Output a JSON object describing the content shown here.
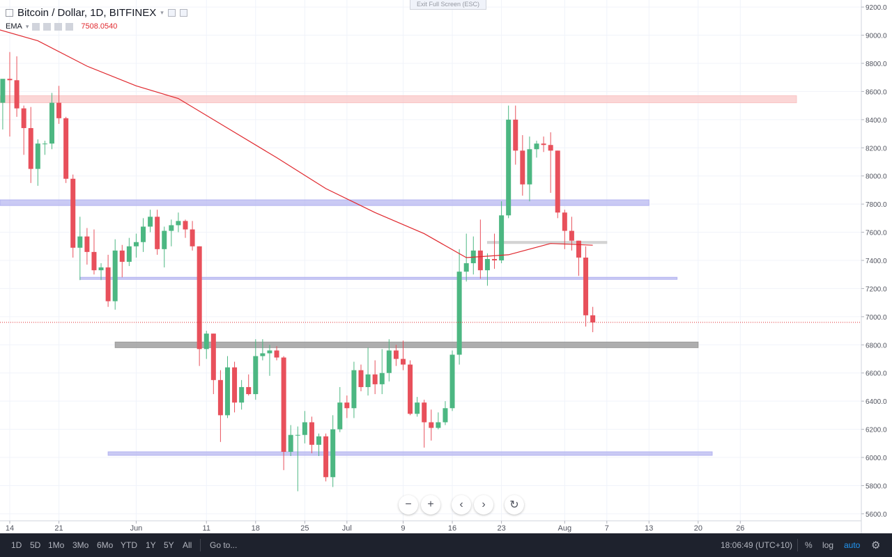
{
  "header": {
    "symbol": "Bitcoin / Dollar, 1D, BITFINEX",
    "indicator_name": "EMA",
    "indicator_value": "7508.0540"
  },
  "exit_fullscreen_label": "Exit Full Screen (ESC)",
  "toolbar": {
    "ranges": [
      "1D",
      "5D",
      "1Mo",
      "3Mo",
      "6Mo",
      "YTD",
      "1Y",
      "5Y",
      "All"
    ],
    "goto_label": "Go to...",
    "clock": "18:06:49 (UTC+10)",
    "percent_label": "%",
    "log_label": "log",
    "auto_label": "auto"
  },
  "colors": {
    "up": "#4cb782",
    "down": "#e8505b",
    "ema": "#e0282e",
    "support_band": "#b3b3f0",
    "resistance_band": "#f9c4c4",
    "gray_band": "#9a9a9a"
  },
  "chart_data": {
    "type": "candlestick",
    "ylim": [
      5550,
      9250
    ],
    "y_ticks": [
      5600,
      5800,
      6000,
      6200,
      6400,
      6600,
      6800,
      7000,
      7200,
      7400,
      7600,
      7800,
      8000,
      8200,
      8400,
      8600,
      8800,
      9000,
      9200
    ],
    "x_tick_labels": [
      "14",
      "21",
      "Jun",
      "11",
      "18",
      "25",
      "Jul",
      "9",
      "16",
      "23",
      "Aug",
      "7",
      "13",
      "20",
      "26"
    ],
    "x_tick_dates": [
      "2018-05-14",
      "2018-05-21",
      "2018-06-01",
      "2018-06-11",
      "2018-06-18",
      "2018-06-25",
      "2018-07-01",
      "2018-07-09",
      "2018-07-16",
      "2018-07-23",
      "2018-08-01",
      "2018-08-07",
      "2018-08-13",
      "2018-08-20",
      "2018-08-26"
    ],
    "current_price": 6960,
    "candles": [
      {
        "d": "2018-05-13",
        "o": 8520,
        "h": 8670,
        "l": 8330,
        "c": 8690
      },
      {
        "d": "2018-05-14",
        "o": 8690,
        "h": 8880,
        "l": 8280,
        "c": 8680
      },
      {
        "d": "2018-05-15",
        "o": 8680,
        "h": 8850,
        "l": 8420,
        "c": 8480
      },
      {
        "d": "2018-05-16",
        "o": 8480,
        "h": 8500,
        "l": 8150,
        "c": 8340
      },
      {
        "d": "2018-05-17",
        "o": 8340,
        "h": 8490,
        "l": 7950,
        "c": 8050
      },
      {
        "d": "2018-05-18",
        "o": 8050,
        "h": 8260,
        "l": 7930,
        "c": 8230
      },
      {
        "d": "2018-05-19",
        "o": 8230,
        "h": 8250,
        "l": 8150,
        "c": 8230
      },
      {
        "d": "2018-05-20",
        "o": 8230,
        "h": 8590,
        "l": 8190,
        "c": 8520
      },
      {
        "d": "2018-05-21",
        "o": 8520,
        "h": 8640,
        "l": 8370,
        "c": 8410
      },
      {
        "d": "2018-05-22",
        "o": 8410,
        "h": 8420,
        "l": 7950,
        "c": 7980
      },
      {
        "d": "2018-05-23",
        "o": 7980,
        "h": 8010,
        "l": 7420,
        "c": 7490
      },
      {
        "d": "2018-05-24",
        "o": 7490,
        "h": 7710,
        "l": 7260,
        "c": 7570
      },
      {
        "d": "2018-05-25",
        "o": 7570,
        "h": 7630,
        "l": 7370,
        "c": 7460
      },
      {
        "d": "2018-05-26",
        "o": 7460,
        "h": 7620,
        "l": 7300,
        "c": 7330
      },
      {
        "d": "2018-05-27",
        "o": 7330,
        "h": 7380,
        "l": 7260,
        "c": 7350
      },
      {
        "d": "2018-05-28",
        "o": 7350,
        "h": 7440,
        "l": 7070,
        "c": 7110
      },
      {
        "d": "2018-05-29",
        "o": 7110,
        "h": 7550,
        "l": 7050,
        "c": 7470
      },
      {
        "d": "2018-05-30",
        "o": 7470,
        "h": 7510,
        "l": 7280,
        "c": 7390
      },
      {
        "d": "2018-05-31",
        "o": 7390,
        "h": 7560,
        "l": 7360,
        "c": 7500
      },
      {
        "d": "2018-06-01",
        "o": 7500,
        "h": 7590,
        "l": 7420,
        "c": 7530
      },
      {
        "d": "2018-06-02",
        "o": 7530,
        "h": 7700,
        "l": 7460,
        "c": 7640
      },
      {
        "d": "2018-06-03",
        "o": 7640,
        "h": 7760,
        "l": 7600,
        "c": 7710
      },
      {
        "d": "2018-06-04",
        "o": 7710,
        "h": 7760,
        "l": 7440,
        "c": 7480
      },
      {
        "d": "2018-06-05",
        "o": 7480,
        "h": 7640,
        "l": 7350,
        "c": 7610
      },
      {
        "d": "2018-06-06",
        "o": 7610,
        "h": 7690,
        "l": 7500,
        "c": 7650
      },
      {
        "d": "2018-06-07",
        "o": 7650,
        "h": 7740,
        "l": 7600,
        "c": 7680
      },
      {
        "d": "2018-06-08",
        "o": 7680,
        "h": 7690,
        "l": 7560,
        "c": 7620
      },
      {
        "d": "2018-06-09",
        "o": 7620,
        "h": 7680,
        "l": 7470,
        "c": 7500
      },
      {
        "d": "2018-06-10",
        "o": 7500,
        "h": 7500,
        "l": 6650,
        "c": 6770
      },
      {
        "d": "2018-06-11",
        "o": 6770,
        "h": 6900,
        "l": 6700,
        "c": 6880
      },
      {
        "d": "2018-06-12",
        "o": 6880,
        "h": 6880,
        "l": 6450,
        "c": 6550
      },
      {
        "d": "2018-06-13",
        "o": 6550,
        "h": 6620,
        "l": 6110,
        "c": 6300
      },
      {
        "d": "2018-06-14",
        "o": 6300,
        "h": 6720,
        "l": 6280,
        "c": 6640
      },
      {
        "d": "2018-06-15",
        "o": 6640,
        "h": 6680,
        "l": 6320,
        "c": 6390
      },
      {
        "d": "2018-06-16",
        "o": 6390,
        "h": 6550,
        "l": 6340,
        "c": 6500
      },
      {
        "d": "2018-06-17",
        "o": 6500,
        "h": 6590,
        "l": 6440,
        "c": 6450
      },
      {
        "d": "2018-06-18",
        "o": 6450,
        "h": 6840,
        "l": 6410,
        "c": 6720
      },
      {
        "d": "2018-06-19",
        "o": 6720,
        "h": 6840,
        "l": 6690,
        "c": 6740
      },
      {
        "d": "2018-06-20",
        "o": 6740,
        "h": 6800,
        "l": 6580,
        "c": 6760
      },
      {
        "d": "2018-06-21",
        "o": 6760,
        "h": 6790,
        "l": 6690,
        "c": 6710
      },
      {
        "d": "2018-06-22",
        "o": 6710,
        "h": 6720,
        "l": 5910,
        "c": 6040
      },
      {
        "d": "2018-06-23",
        "o": 6040,
        "h": 6230,
        "l": 6010,
        "c": 6160
      },
      {
        "d": "2018-06-24",
        "o": 6160,
        "h": 6220,
        "l": 5760,
        "c": 6160
      },
      {
        "d": "2018-06-25",
        "o": 6160,
        "h": 6330,
        "l": 6100,
        "c": 6250
      },
      {
        "d": "2018-06-26",
        "o": 6250,
        "h": 6290,
        "l": 6030,
        "c": 6090
      },
      {
        "d": "2018-06-27",
        "o": 6090,
        "h": 6170,
        "l": 6010,
        "c": 6150
      },
      {
        "d": "2018-06-28",
        "o": 6150,
        "h": 6170,
        "l": 5830,
        "c": 5860
      },
      {
        "d": "2018-06-29",
        "o": 5860,
        "h": 6300,
        "l": 5790,
        "c": 6200
      },
      {
        "d": "2018-06-30",
        "o": 6200,
        "h": 6500,
        "l": 6180,
        "c": 6390
      },
      {
        "d": "2018-07-01",
        "o": 6390,
        "h": 6440,
        "l": 6280,
        "c": 6350
      },
      {
        "d": "2018-07-02",
        "o": 6350,
        "h": 6680,
        "l": 6280,
        "c": 6620
      },
      {
        "d": "2018-07-03",
        "o": 6620,
        "h": 6660,
        "l": 6470,
        "c": 6500
      },
      {
        "d": "2018-07-04",
        "o": 6500,
        "h": 6780,
        "l": 6440,
        "c": 6590
      },
      {
        "d": "2018-07-05",
        "o": 6590,
        "h": 6690,
        "l": 6450,
        "c": 6520
      },
      {
        "d": "2018-07-06",
        "o": 6520,
        "h": 6770,
        "l": 6450,
        "c": 6600
      },
      {
        "d": "2018-07-07",
        "o": 6600,
        "h": 6840,
        "l": 6540,
        "c": 6760
      },
      {
        "d": "2018-07-08",
        "o": 6760,
        "h": 6800,
        "l": 6650,
        "c": 6700
      },
      {
        "d": "2018-07-09",
        "o": 6700,
        "h": 6830,
        "l": 6620,
        "c": 6660
      },
      {
        "d": "2018-07-10",
        "o": 6660,
        "h": 6690,
        "l": 6300,
        "c": 6310
      },
      {
        "d": "2018-07-11",
        "o": 6310,
        "h": 6430,
        "l": 6290,
        "c": 6390
      },
      {
        "d": "2018-07-12",
        "o": 6390,
        "h": 6410,
        "l": 6070,
        "c": 6250
      },
      {
        "d": "2018-07-13",
        "o": 6250,
        "h": 6340,
        "l": 6120,
        "c": 6210
      },
      {
        "d": "2018-07-14",
        "o": 6210,
        "h": 6320,
        "l": 6200,
        "c": 6250
      },
      {
        "d": "2018-07-15",
        "o": 6250,
        "h": 6400,
        "l": 6230,
        "c": 6350
      },
      {
        "d": "2018-07-16",
        "o": 6350,
        "h": 6760,
        "l": 6330,
        "c": 6730
      },
      {
        "d": "2018-07-17",
        "o": 6730,
        "h": 7480,
        "l": 6660,
        "c": 7320
      },
      {
        "d": "2018-07-18",
        "o": 7320,
        "h": 7590,
        "l": 7250,
        "c": 7380
      },
      {
        "d": "2018-07-19",
        "o": 7380,
        "h": 7570,
        "l": 7300,
        "c": 7470
      },
      {
        "d": "2018-07-20",
        "o": 7470,
        "h": 7690,
        "l": 7270,
        "c": 7330
      },
      {
        "d": "2018-07-21",
        "o": 7330,
        "h": 7450,
        "l": 7220,
        "c": 7410
      },
      {
        "d": "2018-07-22",
        "o": 7410,
        "h": 7590,
        "l": 7340,
        "c": 7400
      },
      {
        "d": "2018-07-23",
        "o": 7400,
        "h": 7820,
        "l": 7380,
        "c": 7720
      },
      {
        "d": "2018-07-24",
        "o": 7720,
        "h": 8500,
        "l": 7700,
        "c": 8400
      },
      {
        "d": "2018-07-25",
        "o": 8400,
        "h": 8500,
        "l": 8080,
        "c": 8180
      },
      {
        "d": "2018-07-26",
        "o": 8180,
        "h": 8290,
        "l": 7860,
        "c": 7940
      },
      {
        "d": "2018-07-27",
        "o": 7940,
        "h": 8280,
        "l": 7820,
        "c": 8190
      },
      {
        "d": "2018-07-28",
        "o": 8190,
        "h": 8250,
        "l": 8130,
        "c": 8230
      },
      {
        "d": "2018-07-29",
        "o": 8230,
        "h": 8280,
        "l": 8170,
        "c": 8220
      },
      {
        "d": "2018-07-30",
        "o": 8220,
        "h": 8310,
        "l": 7880,
        "c": 8180
      },
      {
        "d": "2018-07-31",
        "o": 8180,
        "h": 8180,
        "l": 7700,
        "c": 7740
      },
      {
        "d": "2018-08-01",
        "o": 7740,
        "h": 7760,
        "l": 7480,
        "c": 7610
      },
      {
        "d": "2018-08-02",
        "o": 7610,
        "h": 7710,
        "l": 7470,
        "c": 7540
      },
      {
        "d": "2018-08-03",
        "o": 7540,
        "h": 7540,
        "l": 7290,
        "c": 7420
      },
      {
        "d": "2018-08-04",
        "o": 7420,
        "h": 7500,
        "l": 6930,
        "c": 7010
      },
      {
        "d": "2018-08-05",
        "o": 7010,
        "h": 7070,
        "l": 6890,
        "c": 6960
      }
    ],
    "ema": [
      {
        "d": "2018-05-11",
        "v": 9060
      },
      {
        "d": "2018-05-18",
        "v": 8960
      },
      {
        "d": "2018-05-25",
        "v": 8780
      },
      {
        "d": "2018-06-01",
        "v": 8640
      },
      {
        "d": "2018-06-07",
        "v": 8550
      },
      {
        "d": "2018-06-14",
        "v": 8340
      },
      {
        "d": "2018-06-21",
        "v": 8130
      },
      {
        "d": "2018-06-28",
        "v": 7910
      },
      {
        "d": "2018-07-05",
        "v": 7740
      },
      {
        "d": "2018-07-12",
        "v": 7590
      },
      {
        "d": "2018-07-18",
        "v": 7420
      },
      {
        "d": "2018-07-24",
        "v": 7440
      },
      {
        "d": "2018-07-30",
        "v": 7520
      },
      {
        "d": "2018-08-05",
        "v": 7508
      }
    ],
    "bands": [
      {
        "kind": "resistance",
        "low": 8520,
        "high": 8570,
        "from": "2018-05-11",
        "to": "2018-09-03"
      },
      {
        "kind": "support",
        "low": 7790,
        "high": 7830,
        "from": "2018-05-11",
        "to": "2018-08-13"
      },
      {
        "kind": "support",
        "low": 7270,
        "high": 7280,
        "from": "2018-05-24",
        "to": "2018-08-17"
      },
      {
        "kind": "gray",
        "low": 6780,
        "high": 6820,
        "from": "2018-05-29",
        "to": "2018-08-20"
      },
      {
        "kind": "support",
        "low": 6015,
        "high": 6040,
        "from": "2018-05-28",
        "to": "2018-08-22"
      },
      {
        "kind": "gray-line",
        "low": 7520,
        "high": 7535,
        "from": "2018-07-21",
        "to": "2018-08-07"
      }
    ]
  }
}
